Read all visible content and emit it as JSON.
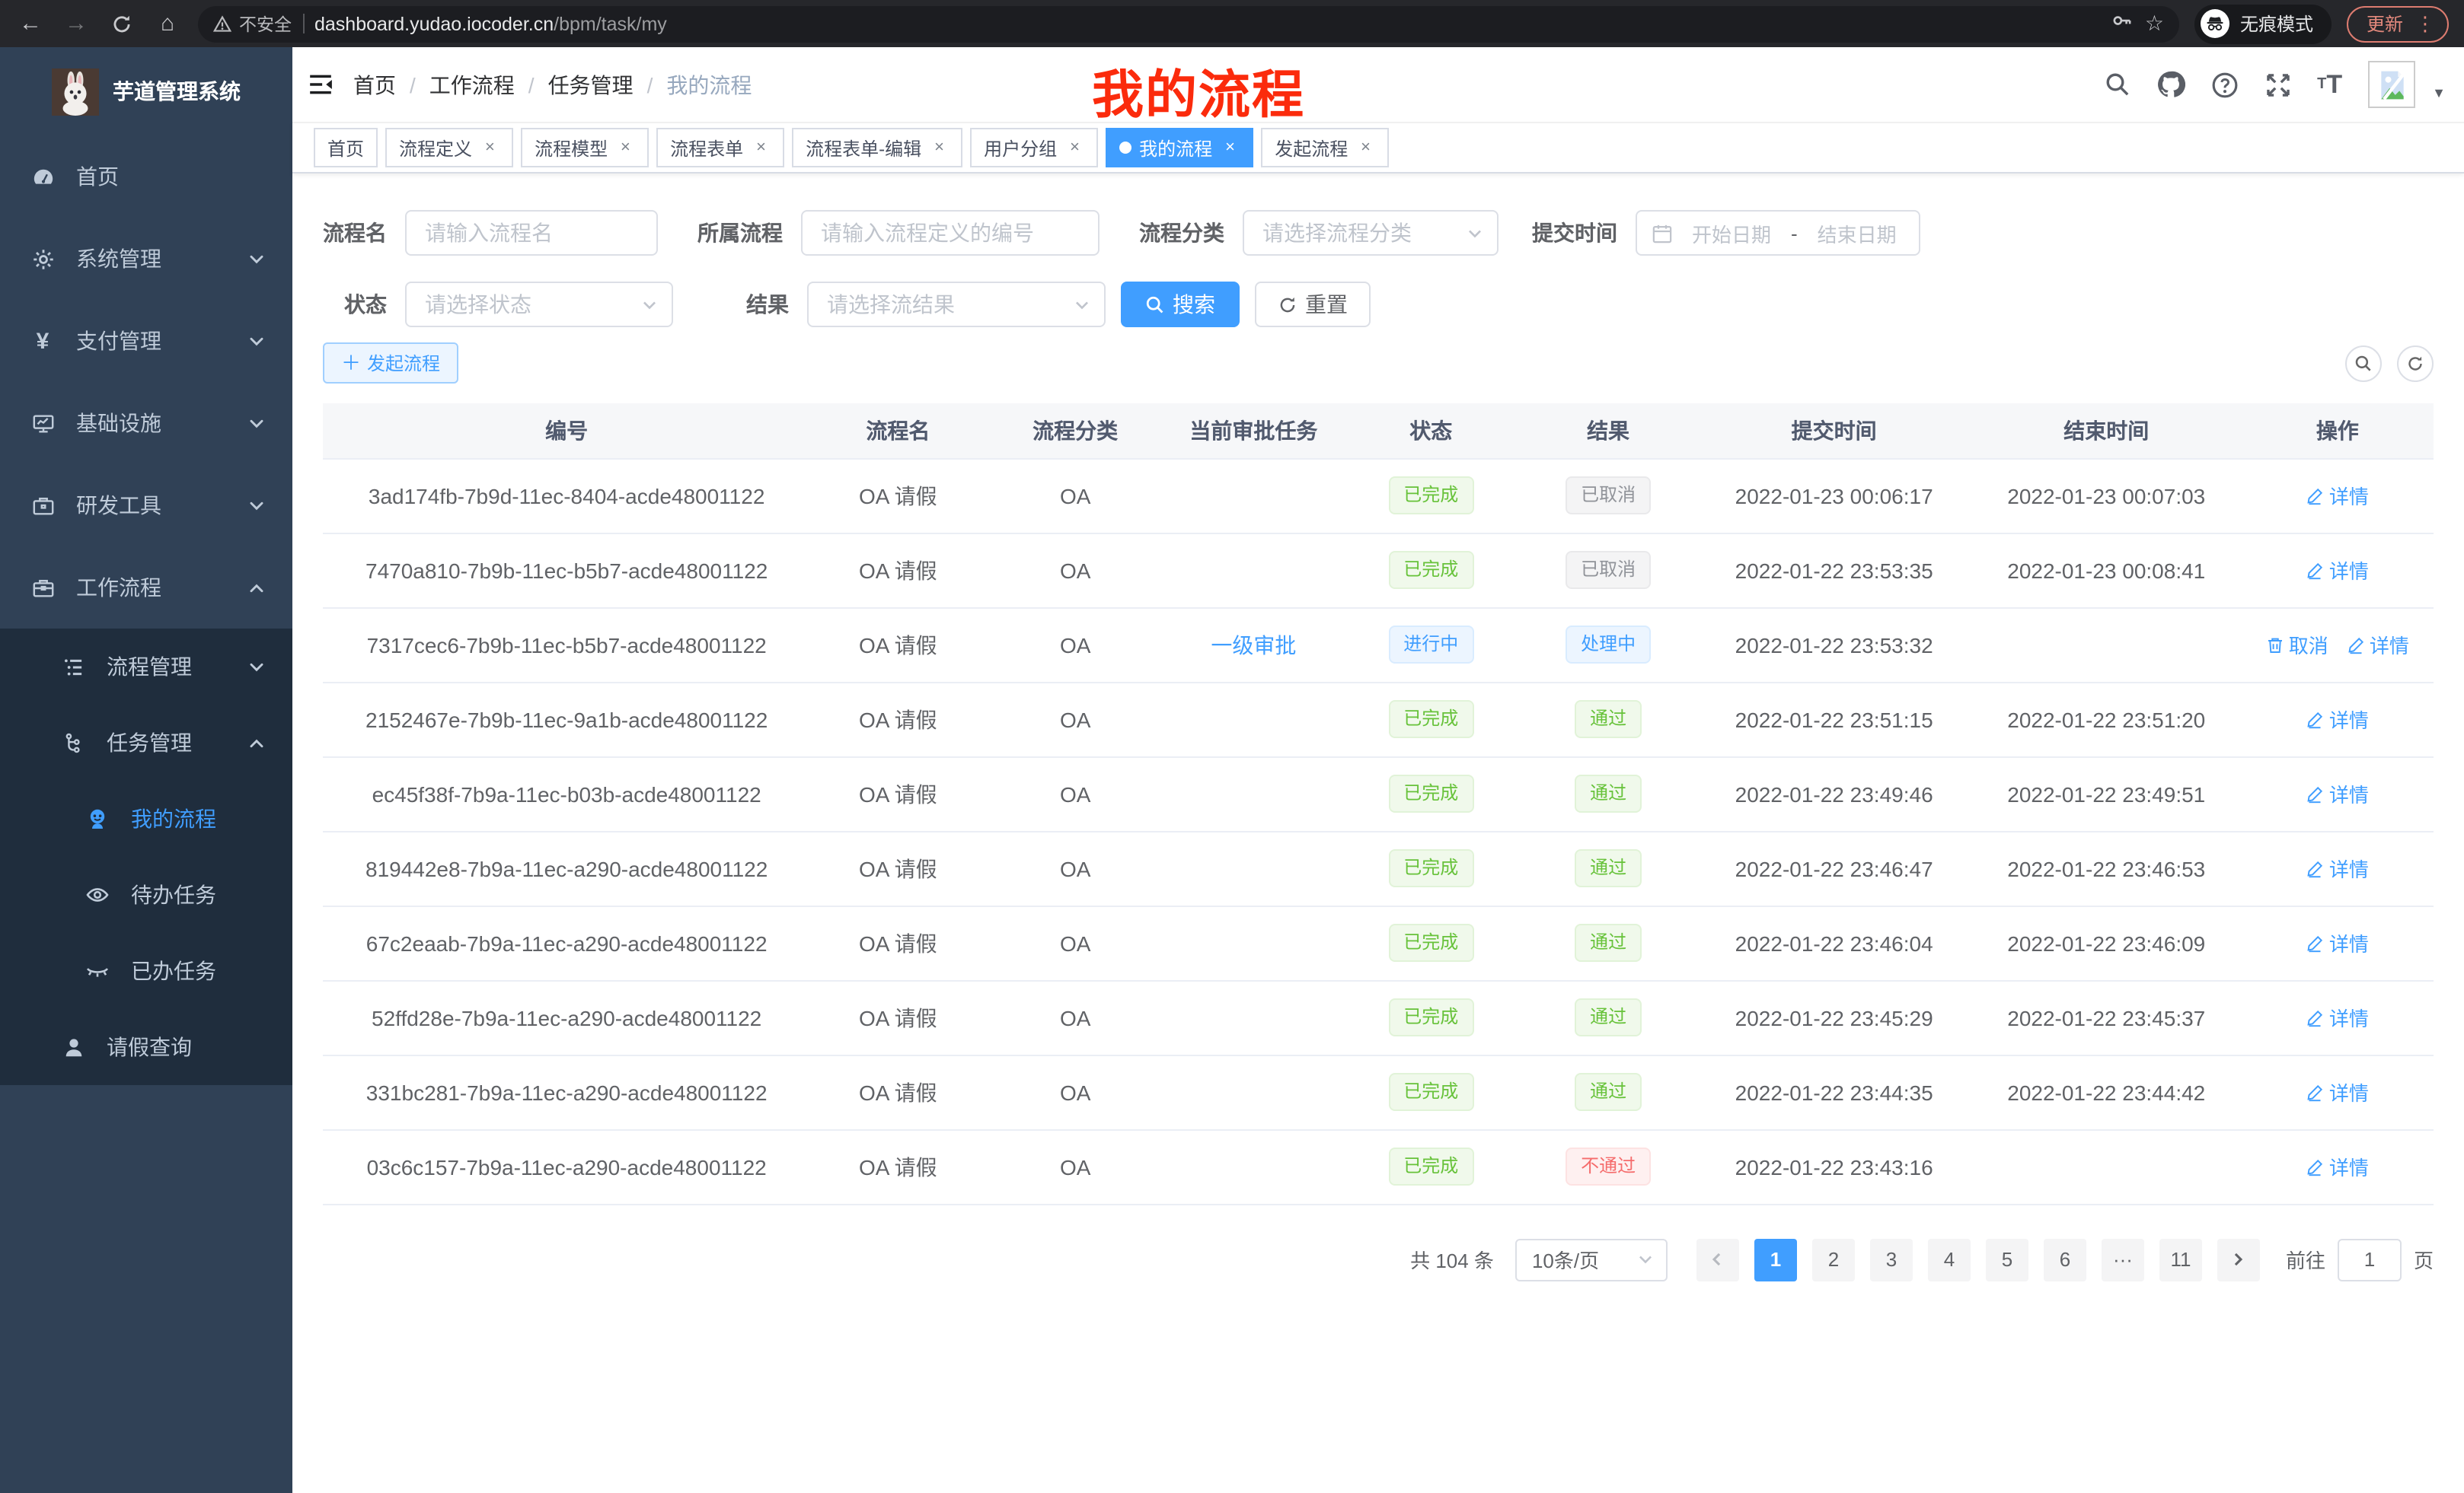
{
  "browser": {
    "security": "不安全",
    "host": "dashboard.yudao.iocoder.cn",
    "path": "/bpm/task/my",
    "incognito": "无痕模式",
    "update": "更新"
  },
  "sidebar": {
    "title": "芋道管理系统",
    "items": [
      {
        "key": "home",
        "label": "首页",
        "icon": "dashboard-icon",
        "level": 1
      },
      {
        "key": "system",
        "label": "系统管理",
        "icon": "gear-icon",
        "level": 1,
        "arrow": "down"
      },
      {
        "key": "payment",
        "label": "支付管理",
        "icon": "yen-icon",
        "level": 1,
        "arrow": "down"
      },
      {
        "key": "infrastructure",
        "label": "基础设施",
        "icon": "monitor-icon",
        "level": 1,
        "arrow": "down"
      },
      {
        "key": "devtools",
        "label": "研发工具",
        "icon": "briefcase-icon",
        "level": 1,
        "arrow": "down"
      },
      {
        "key": "workflow",
        "label": "工作流程",
        "icon": "suitcase-icon",
        "level": 1,
        "arrow": "up"
      },
      {
        "key": "process-mgmt",
        "label": "流程管理",
        "icon": "list-icon",
        "level": 2,
        "arrow": "down",
        "dark": true
      },
      {
        "key": "task-mgmt",
        "label": "任务管理",
        "icon": "tree-icon",
        "level": 2,
        "arrow": "up",
        "dark": true
      },
      {
        "key": "my-process",
        "label": "我的流程",
        "icon": "robot-icon",
        "level": 3,
        "active": true,
        "dark": true
      },
      {
        "key": "todo-task",
        "label": "待办任务",
        "icon": "eye-open-icon",
        "level": 3,
        "dark": true
      },
      {
        "key": "done-task",
        "label": "已办任务",
        "icon": "eye-close-icon",
        "level": 3,
        "dark": true
      },
      {
        "key": "leave-query",
        "label": "请假查询",
        "icon": "user-icon",
        "level": 2,
        "dark": true
      }
    ]
  },
  "navbar": {
    "breadcrumb": [
      "首页",
      "工作流程",
      "任务管理",
      "我的流程"
    ],
    "annotation": "我的流程"
  },
  "tags": [
    {
      "key": "home",
      "label": "首页",
      "closable": false,
      "active": false
    },
    {
      "key": "process-definition",
      "label": "流程定义",
      "closable": true,
      "active": false
    },
    {
      "key": "process-model",
      "label": "流程模型",
      "closable": true,
      "active": false
    },
    {
      "key": "process-form",
      "label": "流程表单",
      "closable": true,
      "active": false
    },
    {
      "key": "process-form-edit",
      "label": "流程表单-编辑",
      "closable": true,
      "active": false
    },
    {
      "key": "user-group",
      "label": "用户分组",
      "closable": true,
      "active": false
    },
    {
      "key": "my-process",
      "label": "我的流程",
      "closable": true,
      "active": true
    },
    {
      "key": "start-process",
      "label": "发起流程",
      "closable": true,
      "active": false
    }
  ],
  "filters": {
    "name_label": "流程名",
    "name_placeholder": "请输入流程名",
    "definition_label": "所属流程",
    "definition_placeholder": "请输入流程定义的编号",
    "category_label": "流程分类",
    "category_placeholder": "请选择流程分类",
    "time_label": "提交时间",
    "start_placeholder": "开始日期",
    "range_separator": "-",
    "end_placeholder": "结束日期",
    "status_label": "状态",
    "status_placeholder": "请选择状态",
    "result_label": "结果",
    "result_placeholder": "请选择流结果",
    "search": "搜索",
    "reset": "重置"
  },
  "toolbar": {
    "create": "发起流程"
  },
  "table": {
    "columns": [
      "编号",
      "流程名",
      "流程分类",
      "当前审批任务",
      "状态",
      "结果",
      "提交时间",
      "结束时间",
      "操作"
    ],
    "rows": [
      {
        "id": "3ad174fb-7b9d-11ec-8404-acde48001122",
        "name": "OA 请假",
        "category": "OA",
        "task": "",
        "status": {
          "text": "已完成",
          "type": "success"
        },
        "result": {
          "text": "已取消",
          "type": "info"
        },
        "submit": "2022-01-23 00:06:17",
        "end": "2022-01-23 00:07:03",
        "actions": [
          {
            "key": "detail",
            "label": "详情",
            "icon": "edit-icon"
          }
        ]
      },
      {
        "id": "7470a810-7b9b-11ec-b5b7-acde48001122",
        "name": "OA 请假",
        "category": "OA",
        "task": "",
        "status": {
          "text": "已完成",
          "type": "success"
        },
        "result": {
          "text": "已取消",
          "type": "info"
        },
        "submit": "2022-01-22 23:53:35",
        "end": "2022-01-23 00:08:41",
        "actions": [
          {
            "key": "detail",
            "label": "详情",
            "icon": "edit-icon"
          }
        ]
      },
      {
        "id": "7317cec6-7b9b-11ec-b5b7-acde48001122",
        "name": "OA 请假",
        "category": "OA",
        "task": "一级审批",
        "status": {
          "text": "进行中",
          "type": "primary"
        },
        "result": {
          "text": "处理中",
          "type": "primary"
        },
        "submit": "2022-01-22 23:53:32",
        "end": "",
        "actions": [
          {
            "key": "cancel",
            "label": "取消",
            "icon": "delete-icon"
          },
          {
            "key": "detail",
            "label": "详情",
            "icon": "edit-icon"
          }
        ]
      },
      {
        "id": "2152467e-7b9b-11ec-9a1b-acde48001122",
        "name": "OA 请假",
        "category": "OA",
        "task": "",
        "status": {
          "text": "已完成",
          "type": "success"
        },
        "result": {
          "text": "通过",
          "type": "success"
        },
        "submit": "2022-01-22 23:51:15",
        "end": "2022-01-22 23:51:20",
        "actions": [
          {
            "key": "detail",
            "label": "详情",
            "icon": "edit-icon"
          }
        ]
      },
      {
        "id": "ec45f38f-7b9a-11ec-b03b-acde48001122",
        "name": "OA 请假",
        "category": "OA",
        "task": "",
        "status": {
          "text": "已完成",
          "type": "success"
        },
        "result": {
          "text": "通过",
          "type": "success"
        },
        "submit": "2022-01-22 23:49:46",
        "end": "2022-01-22 23:49:51",
        "actions": [
          {
            "key": "detail",
            "label": "详情",
            "icon": "edit-icon"
          }
        ]
      },
      {
        "id": "819442e8-7b9a-11ec-a290-acde48001122",
        "name": "OA 请假",
        "category": "OA",
        "task": "",
        "status": {
          "text": "已完成",
          "type": "success"
        },
        "result": {
          "text": "通过",
          "type": "success"
        },
        "submit": "2022-01-22 23:46:47",
        "end": "2022-01-22 23:46:53",
        "actions": [
          {
            "key": "detail",
            "label": "详情",
            "icon": "edit-icon"
          }
        ]
      },
      {
        "id": "67c2eaab-7b9a-11ec-a290-acde48001122",
        "name": "OA 请假",
        "category": "OA",
        "task": "",
        "status": {
          "text": "已完成",
          "type": "success"
        },
        "result": {
          "text": "通过",
          "type": "success"
        },
        "submit": "2022-01-22 23:46:04",
        "end": "2022-01-22 23:46:09",
        "actions": [
          {
            "key": "detail",
            "label": "详情",
            "icon": "edit-icon"
          }
        ]
      },
      {
        "id": "52ffd28e-7b9a-11ec-a290-acde48001122",
        "name": "OA 请假",
        "category": "OA",
        "task": "",
        "status": {
          "text": "已完成",
          "type": "success"
        },
        "result": {
          "text": "通过",
          "type": "success"
        },
        "submit": "2022-01-22 23:45:29",
        "end": "2022-01-22 23:45:37",
        "actions": [
          {
            "key": "detail",
            "label": "详情",
            "icon": "edit-icon"
          }
        ]
      },
      {
        "id": "331bc281-7b9a-11ec-a290-acde48001122",
        "name": "OA 请假",
        "category": "OA",
        "task": "",
        "status": {
          "text": "已完成",
          "type": "success"
        },
        "result": {
          "text": "通过",
          "type": "success"
        },
        "submit": "2022-01-22 23:44:35",
        "end": "2022-01-22 23:44:42",
        "actions": [
          {
            "key": "detail",
            "label": "详情",
            "icon": "edit-icon"
          }
        ]
      },
      {
        "id": "03c6c157-7b9a-11ec-a290-acde48001122",
        "name": "OA 请假",
        "category": "OA",
        "task": "",
        "status": {
          "text": "已完成",
          "type": "success"
        },
        "result": {
          "text": "不通过",
          "type": "danger"
        },
        "submit": "2022-01-22 23:43:16",
        "end": "",
        "actions": [
          {
            "key": "detail",
            "label": "详情",
            "icon": "edit-icon"
          }
        ]
      }
    ]
  },
  "pagination": {
    "total": "共 104 条",
    "page_size": "10条/页",
    "pages": [
      {
        "label": "1",
        "active": true
      },
      {
        "label": "2"
      },
      {
        "label": "3"
      },
      {
        "label": "4"
      },
      {
        "label": "5"
      },
      {
        "label": "6"
      },
      {
        "label": "···",
        "ellipsis": true
      },
      {
        "label": "11"
      }
    ],
    "goto": "前往",
    "goto_value": "1",
    "unit": "页"
  },
  "colors": {
    "primary": "#409eff",
    "success": "#67c23a",
    "danger": "#f56c6c",
    "info": "#909399",
    "sidebar_bg": "#304156",
    "submenu_bg": "#1f2d3d",
    "annotation_red": "#fb2b0c"
  }
}
